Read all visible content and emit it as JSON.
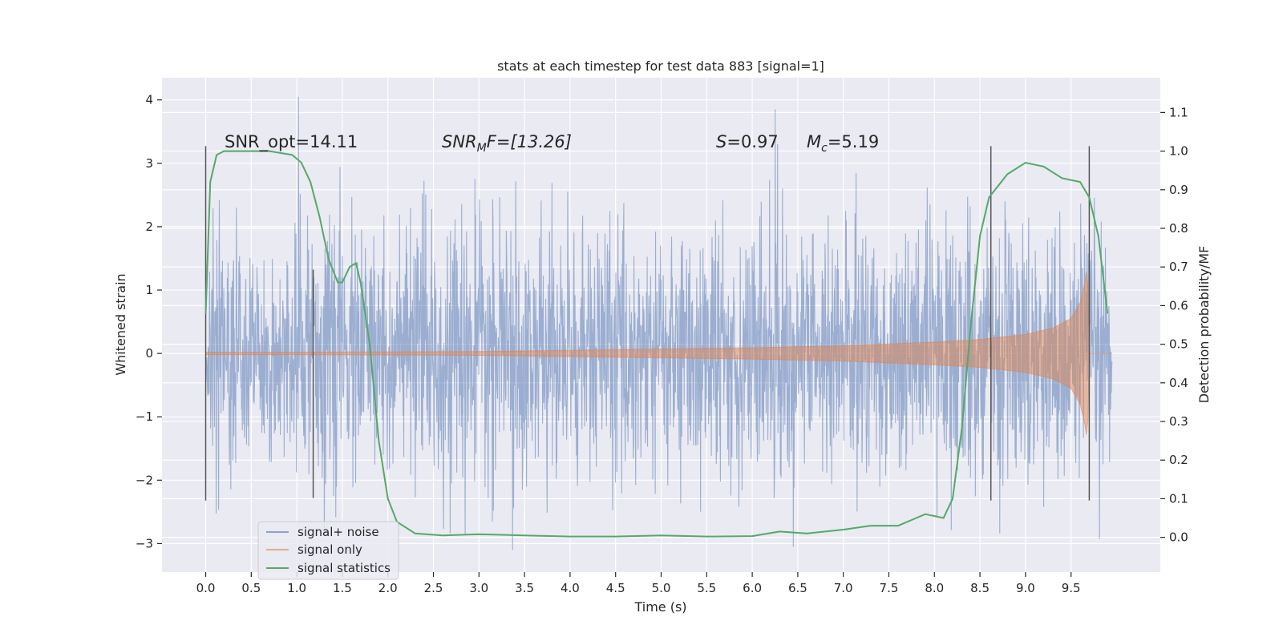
{
  "chart_data": {
    "type": "line",
    "title": "stats at each timestep for test data 883 [signal=1]",
    "xlabel": "Time (s)",
    "ylabel": "Whitened strain",
    "y2label": "Detection probability/MF",
    "xlim": [
      -0.48,
      10.48
    ],
    "ylim": [
      -3.45,
      4.35
    ],
    "y2lim": [
      -0.09,
      1.19
    ],
    "xticks": [
      "0.0",
      "0.5",
      "1.0",
      "1.5",
      "2.0",
      "2.5",
      "3.0",
      "3.5",
      "4.0",
      "4.5",
      "5.0",
      "5.5",
      "6.0",
      "6.5",
      "7.0",
      "7.5",
      "8.0",
      "8.5",
      "9.0",
      "9.5"
    ],
    "yticks": [
      "4",
      "3",
      "2",
      "1",
      "0",
      "−1",
      "−2",
      "−3"
    ],
    "y2ticks": [
      "1.1",
      "1.0",
      "0.9",
      "0.8",
      "0.7",
      "0.6",
      "0.5",
      "0.4",
      "0.3",
      "0.2",
      "0.1",
      "0.0"
    ],
    "grid": true,
    "legend_position": "lower-left",
    "colors": {
      "noise": "#4c72b0",
      "signal": "#dd8452",
      "stat": "#55a868",
      "vlines": "#555555",
      "axes_bg": "#eaeaf2",
      "grid": "#ffffff"
    },
    "annotations": {
      "snr_opt": "SNR_opt=14.11",
      "snr_mf_prefix": "SNR",
      "snr_mf_sub": "M",
      "snr_mf_suffix": "F=[13.26]",
      "s_prefix": "S",
      "s_value": "=0.97",
      "mc_prefix": "M",
      "mc_sub": "c",
      "mc_value": "=5.19"
    },
    "series": [
      {
        "name": "signal+ noise",
        "kind": "noise-band",
        "x_range": [
          0.0,
          9.95
        ],
        "amplitude_typical": 1.3,
        "min": -3.1,
        "max": 4.05,
        "spikes": [
          [
            1.02,
            4.05
          ],
          [
            6.25,
            3.85
          ],
          [
            6.28,
            3.3
          ],
          [
            6.45,
            -3.05
          ],
          [
            3.37,
            -3.1
          ],
          [
            1.3,
            -2.85
          ],
          [
            2.85,
            -2.85
          ]
        ]
      },
      {
        "name": "signal only",
        "kind": "chirp-envelope",
        "envelope": [
          [
            0.0,
            0.02
          ],
          [
            1.0,
            0.02
          ],
          [
            2.0,
            0.025
          ],
          [
            3.0,
            0.03
          ],
          [
            4.0,
            0.05
          ],
          [
            5.0,
            0.07
          ],
          [
            6.0,
            0.09
          ],
          [
            7.0,
            0.12
          ],
          [
            8.0,
            0.18
          ],
          [
            8.5,
            0.22
          ],
          [
            9.0,
            0.3
          ],
          [
            9.3,
            0.4
          ],
          [
            9.5,
            0.55
          ],
          [
            9.6,
            0.8
          ],
          [
            9.65,
            1.1
          ],
          [
            9.68,
            1.4
          ],
          [
            9.7,
            0.0
          ],
          [
            9.95,
            0.0
          ]
        ]
      },
      {
        "name": "signal statistics",
        "kind": "line",
        "axis": "y2",
        "x": [
          0.0,
          0.05,
          0.12,
          0.2,
          0.4,
          0.7,
          0.95,
          1.05,
          1.15,
          1.25,
          1.35,
          1.45,
          1.5,
          1.58,
          1.65,
          1.7,
          1.8,
          1.9,
          2.0,
          2.1,
          2.3,
          2.6,
          3.0,
          3.5,
          4.0,
          4.5,
          5.0,
          5.5,
          6.0,
          6.3,
          6.6,
          7.0,
          7.3,
          7.6,
          7.9,
          8.1,
          8.2,
          8.3,
          8.4,
          8.5,
          8.6,
          8.8,
          9.0,
          9.2,
          9.4,
          9.6,
          9.7,
          9.8,
          9.9
        ],
        "y": [
          0.58,
          0.92,
          0.99,
          1.0,
          1.0,
          1.0,
          0.99,
          0.97,
          0.92,
          0.83,
          0.72,
          0.66,
          0.66,
          0.7,
          0.71,
          0.66,
          0.5,
          0.25,
          0.1,
          0.04,
          0.01,
          0.005,
          0.008,
          0.005,
          0.002,
          0.002,
          0.005,
          0.002,
          0.003,
          0.015,
          0.01,
          0.02,
          0.03,
          0.03,
          0.06,
          0.05,
          0.1,
          0.28,
          0.55,
          0.78,
          0.88,
          0.94,
          0.97,
          0.96,
          0.93,
          0.92,
          0.88,
          0.78,
          0.58
        ]
      }
    ],
    "vertical_lines": [
      {
        "x": 0.0,
        "ymin": -2.32,
        "ymax": 3.27
      },
      {
        "x": 1.18,
        "ymin": -2.28,
        "ymax": 1.32
      },
      {
        "x": 8.62,
        "ymin": -2.32,
        "ymax": 3.27
      },
      {
        "x": 9.7,
        "ymin": -2.32,
        "ymax": 3.27
      }
    ]
  }
}
